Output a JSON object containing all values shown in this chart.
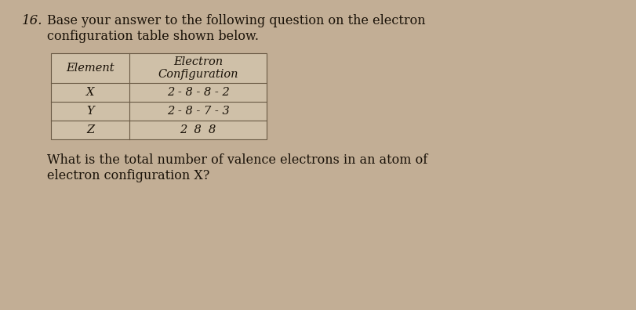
{
  "question_number": "16.",
  "intro_text_line1": "Base your answer to the following question on the electron",
  "intro_text_line2": "configuration table shown below.",
  "table_headers": [
    "Element",
    "Electron\nConfiguration"
  ],
  "table_rows": [
    [
      "X",
      "2 - 8 - 8 - 2"
    ],
    [
      "Y",
      "2 - 8 - 7 - 3"
    ],
    [
      "Z",
      "2  8  8"
    ]
  ],
  "question_line1": "What is the total number of valence electrons in an atom of",
  "question_line2": "electron configuration X?",
  "bg_color": "#c2ae95",
  "text_color": "#1a1208",
  "table_bg": "#cfc0a8",
  "table_border": "#6a5a45",
  "font_size_intro": 11.5,
  "font_size_table": 10.5,
  "font_size_question": 11.5,
  "font_size_number": 12
}
